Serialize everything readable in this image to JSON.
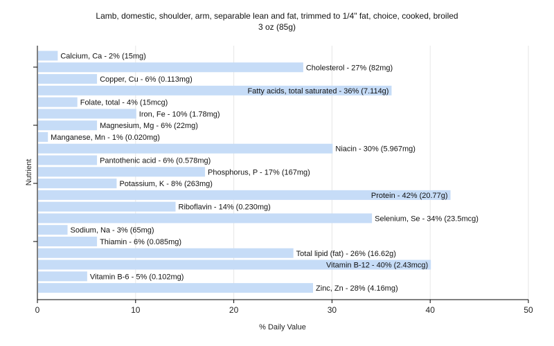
{
  "chart_data": {
    "type": "bar",
    "orientation": "horizontal",
    "title": "Lamb, domestic, shoulder, arm, separable lean and fat, trimmed to 1/4\" fat, choice, cooked, broiled",
    "subtitle": "3 oz (85g)",
    "xlabel": "% Daily Value",
    "ylabel": "Nutrient",
    "xlim": [
      0,
      50
    ],
    "xticks": [
      0,
      10,
      20,
      30,
      40,
      50
    ],
    "grid": "vertical",
    "bar_color": "#c6dcf7",
    "categories": [
      "Calcium, Ca",
      "Cholesterol",
      "Copper, Cu",
      "Fatty acids, total saturated",
      "Folate, total",
      "Iron, Fe",
      "Magnesium, Mg",
      "Manganese, Mn",
      "Niacin",
      "Pantothenic acid",
      "Phosphorus, P",
      "Potassium, K",
      "Protein",
      "Riboflavin",
      "Selenium, Se",
      "Sodium, Na",
      "Thiamin",
      "Total lipid (fat)",
      "Vitamin B-12",
      "Vitamin B-6",
      "Zinc, Zn"
    ],
    "values": [
      2,
      27,
      6,
      36,
      4,
      10,
      6,
      1,
      30,
      6,
      17,
      8,
      42,
      14,
      34,
      3,
      6,
      26,
      40,
      5,
      28
    ],
    "labels": [
      "Calcium, Ca - 2% (15mg)",
      "Cholesterol - 27% (82mg)",
      "Copper, Cu - 6% (0.113mg)",
      "Fatty acids, total saturated - 36% (7.114g)",
      "Folate, total - 4% (15mcg)",
      "Iron, Fe - 10% (1.78mg)",
      "Magnesium, Mg - 6% (22mg)",
      "Manganese, Mn - 1% (0.020mg)",
      "Niacin - 30% (5.967mg)",
      "Pantothenic acid - 6% (0.578mg)",
      "Phosphorus, P - 17% (167mg)",
      "Potassium, K - 8% (263mg)",
      "Protein - 42% (20.77g)",
      "Riboflavin - 14% (0.230mg)",
      "Selenium, Se - 34% (23.5mcg)",
      "Sodium, Na - 3% (65mg)",
      "Thiamin - 6% (0.085mg)",
      "Total lipid (fat) - 26% (16.62g)",
      "Vitamin B-12 - 40% (2.43mcg)",
      "Vitamin B-6 - 5% (0.102mg)",
      "Zinc, Zn - 28% (4.16mg)"
    ]
  }
}
